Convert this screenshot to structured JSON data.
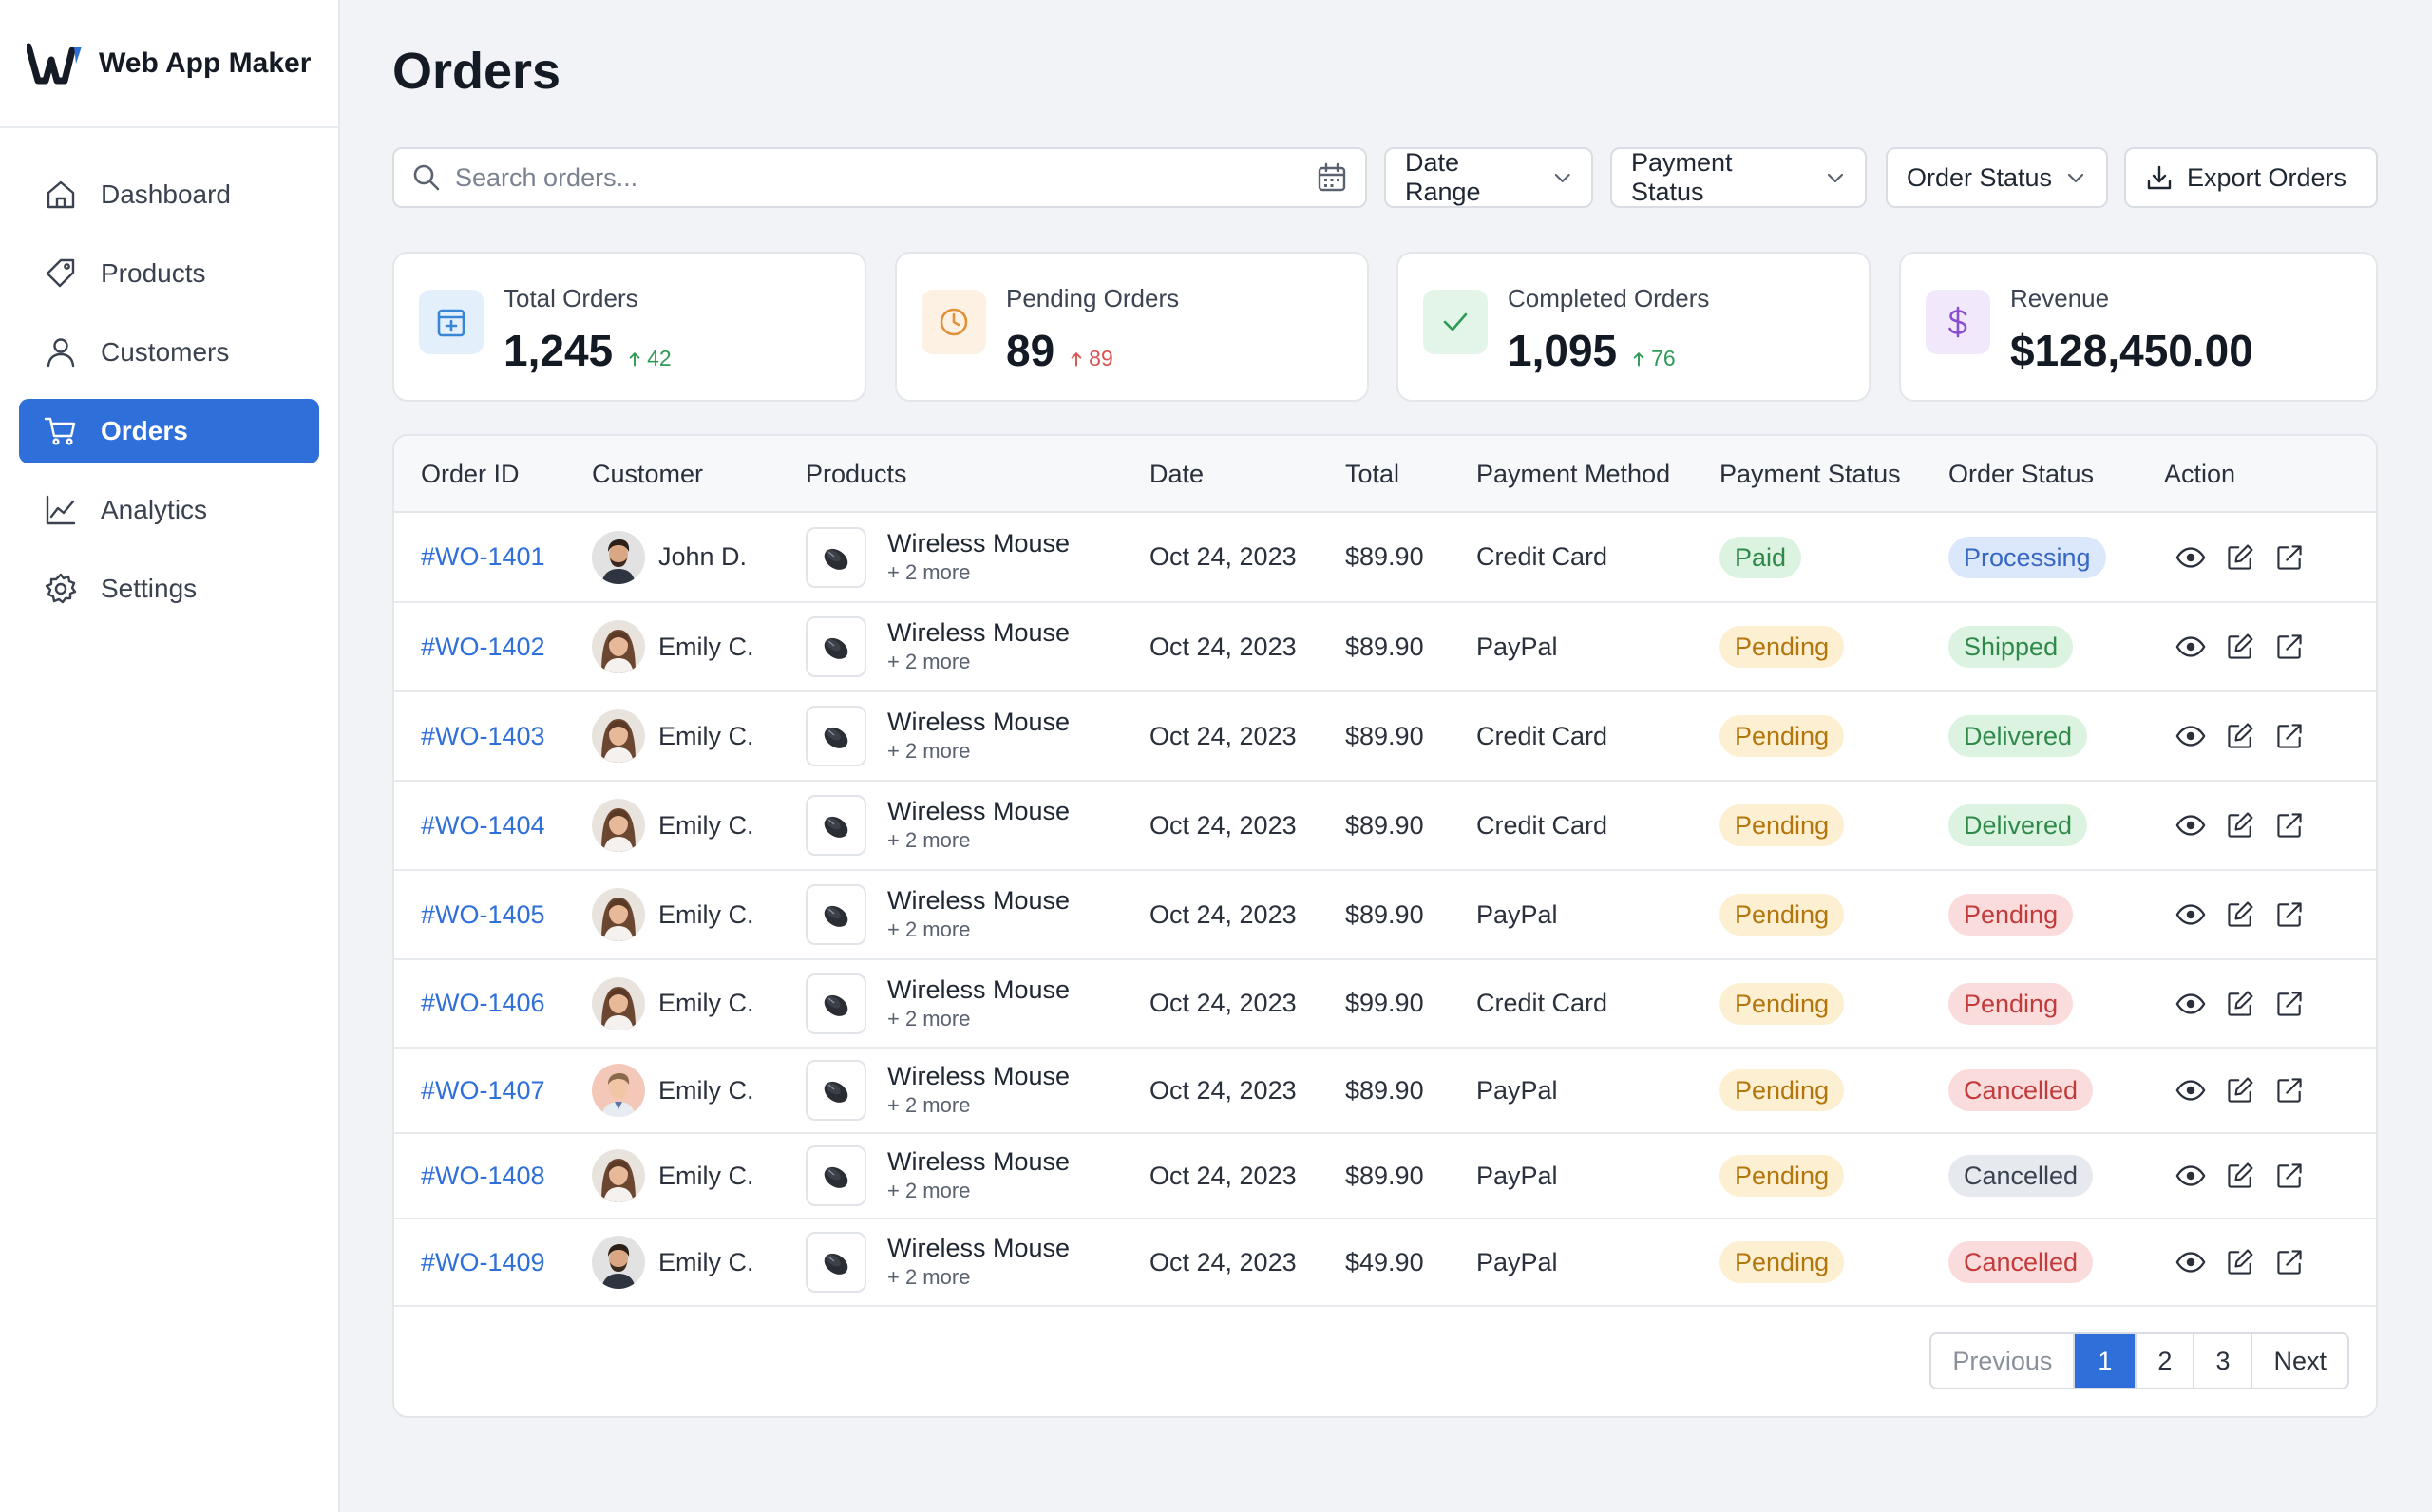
{
  "brand": {
    "name": "Web App Maker"
  },
  "sidebar": {
    "items": [
      {
        "label": "Dashboard",
        "icon": "home-icon",
        "active": false
      },
      {
        "label": "Products",
        "icon": "tag-icon",
        "active": false
      },
      {
        "label": "Customers",
        "icon": "user-icon",
        "active": false
      },
      {
        "label": "Orders",
        "icon": "cart-icon",
        "active": true
      },
      {
        "label": "Analytics",
        "icon": "chart-line-icon",
        "active": false
      },
      {
        "label": "Settings",
        "icon": "gear-icon",
        "active": false
      }
    ]
  },
  "page": {
    "title": "Orders"
  },
  "toolbar": {
    "search_placeholder": "Search orders...",
    "date_range_label": "Date Range",
    "payment_status_label": "Payment Status",
    "order_status_label": "Order Status",
    "export_label": "Export Orders"
  },
  "stats": [
    {
      "label": "Total Orders",
      "value": "1,245",
      "trend": "42",
      "trend_dir": "up",
      "trend_color": "#2e9a55",
      "icon": "inbox-add-icon",
      "icon_bg": "#e3f0fb",
      "icon_color": "#3a86d6"
    },
    {
      "label": "Pending Orders",
      "value": "89",
      "trend": "89",
      "trend_dir": "up",
      "trend_color": "#d9534f",
      "icon": "clock-icon",
      "icon_bg": "#fdf1e3",
      "icon_color": "#e0913a"
    },
    {
      "label": "Completed Orders",
      "value": "1,095",
      "trend": "76",
      "trend_dir": "up",
      "trend_color": "#2e9a55",
      "icon": "check-icon",
      "icon_bg": "#e3f5e8",
      "icon_color": "#2e9a55"
    },
    {
      "label": "Revenue",
      "value": "$128,450.00",
      "trend": "",
      "icon": "dollar-icon",
      "icon_bg": "#f1e8fb",
      "icon_color": "#8a4fd1"
    }
  ],
  "table": {
    "headers": [
      "Order ID",
      "Customer",
      "Products",
      "Date",
      "Total",
      "Payment Method",
      "Payment Status",
      "Order Status",
      "Action"
    ],
    "rows": [
      {
        "id": "#WO-1401",
        "customer": "John D.",
        "avatar": "male-dark",
        "product": "Wireless Mouse",
        "more": "+ 2 more",
        "date": "Oct 24, 2023",
        "total": "$89.90",
        "method": "Credit Card",
        "payment": "Paid",
        "status": "Processing"
      },
      {
        "id": "#WO-1402",
        "customer": "Emily C.",
        "avatar": "female",
        "product": "Wireless Mouse",
        "more": "+ 2 more",
        "date": "Oct 24, 2023",
        "total": "$89.90",
        "method": "PayPal",
        "payment": "Pending",
        "status": "Shipped"
      },
      {
        "id": "#WO-1403",
        "customer": "Emily C.",
        "avatar": "female",
        "product": "Wireless Mouse",
        "more": "+ 2 more",
        "date": "Oct 24, 2023",
        "total": "$89.90",
        "method": "Credit Card",
        "payment": "Pending",
        "status": "Delivered"
      },
      {
        "id": "#WO-1404",
        "customer": "Emily C.",
        "avatar": "female",
        "product": "Wireless Mouse",
        "more": "+ 2 more",
        "date": "Oct 24, 2023",
        "total": "$89.90",
        "method": "Credit Card",
        "payment": "Pending",
        "status": "Delivered"
      },
      {
        "id": "#WO-1405",
        "customer": "Emily C.",
        "avatar": "female",
        "product": "Wireless Mouse",
        "more": "+ 2 more",
        "date": "Oct 24, 2023",
        "total": "$89.90",
        "method": "PayPal",
        "payment": "Pending",
        "status": "Pending"
      },
      {
        "id": "#WO-1406",
        "customer": "Emily C.",
        "avatar": "female",
        "product": "Wireless Mouse",
        "more": "+ 2 more",
        "date": "Oct 24, 2023",
        "total": "$99.90",
        "method": "Credit Card",
        "payment": "Pending",
        "status": "Pending"
      },
      {
        "id": "#WO-1407",
        "customer": "Emily C.",
        "avatar": "male-light",
        "product": "Wireless Mouse",
        "more": "+ 2 more",
        "date": "Oct 24, 2023",
        "total": "$89.90",
        "method": "PayPal",
        "payment": "Pending",
        "status": "Cancelled"
      },
      {
        "id": "#WO-1408",
        "customer": "Emily C.",
        "avatar": "female",
        "product": "Wireless Mouse",
        "more": "+ 2 more",
        "date": "Oct 24, 2023",
        "total": "$89.90",
        "method": "PayPal",
        "payment": "Pending",
        "status": "Cancelled",
        "status_style": "neutral"
      },
      {
        "id": "#WO-1409",
        "customer": "Emily C.",
        "avatar": "male-dark",
        "product": "Wireless Mouse",
        "more": "+ 2 more",
        "date": "Oct 24, 2023",
        "total": "$49.90",
        "method": "PayPal",
        "payment": "Pending",
        "status": "Cancelled"
      }
    ]
  },
  "badge_colors": {
    "Paid": {
      "bg": "#dcf3e2",
      "fg": "#2f8a4a"
    },
    "Pending": {
      "bg": "#fdf0d2",
      "fg": "#b3760c"
    },
    "Processing": {
      "bg": "#dbe7fb",
      "fg": "#3767c3"
    },
    "Shipped": {
      "bg": "#dcf3e2",
      "fg": "#2f8a4a"
    },
    "Delivered": {
      "bg": "#dcf3e2",
      "fg": "#2f8a4a"
    },
    "StatusPending": {
      "bg": "#fbdcdc",
      "fg": "#c23b3b"
    },
    "Cancelled": {
      "bg": "#fbdcdc",
      "fg": "#c23b3b"
    },
    "neutral": {
      "bg": "#e6e9ee",
      "fg": "#3a4250"
    }
  },
  "pagination": {
    "previous": "Previous",
    "pages": [
      "1",
      "2",
      "3"
    ],
    "current": "1",
    "next": "Next"
  },
  "colors": {
    "accent": "#2f6fd9",
    "link": "#2f6fd9"
  }
}
